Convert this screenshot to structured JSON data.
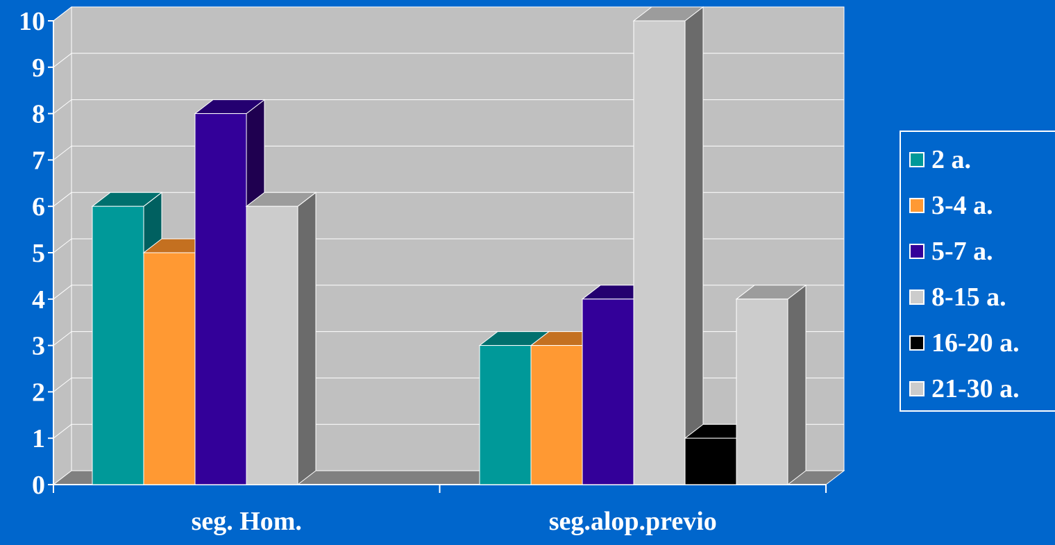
{
  "chart_data": {
    "type": "bar",
    "categories": [
      "seg. Hom.",
      "seg.alop.previo"
    ],
    "series": [
      {
        "name": "2 a.",
        "values": [
          6,
          3
        ],
        "color": "#009999",
        "side": "#006060",
        "top": "#00706e"
      },
      {
        "name": "3-4 a.",
        "values": [
          5,
          3
        ],
        "color": "#ff9933",
        "side": "#b86a20",
        "top": "#c47020"
      },
      {
        "name": "5-7 a.",
        "values": [
          8,
          4
        ],
        "color": "#330099",
        "side": "#1f0050",
        "top": "#240070"
      },
      {
        "name": "8-15 a.",
        "values": [
          6,
          10
        ],
        "color": "#cccccc",
        "side": "#6b6b6b",
        "top": "#9c9c9c"
      },
      {
        "name": "16-20 a.",
        "values": [
          0,
          1
        ],
        "color": "#000000",
        "side": "#000000",
        "top": "#000000"
      },
      {
        "name": "21-30 a.",
        "values": [
          0,
          4
        ],
        "color": "#cccccc",
        "side": "#6b6b6b",
        "top": "#9c9c9c"
      }
    ],
    "ylim": [
      0,
      10
    ],
    "yticks": [
      0,
      1,
      2,
      3,
      4,
      5,
      6,
      7,
      8,
      9,
      10
    ],
    "grid": true,
    "legend_position": "right",
    "colors": {
      "background": "#0066cc",
      "plot_wall": "#c0c0c0",
      "floor": "#808080",
      "text": "#ffffff"
    }
  }
}
